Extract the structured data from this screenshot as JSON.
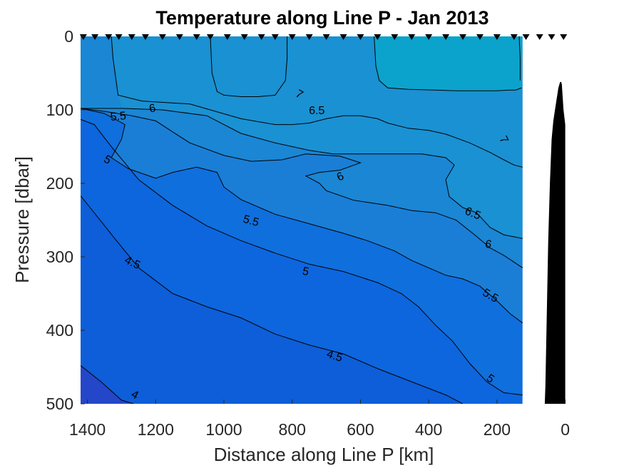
{
  "chart_data": {
    "type": "contour",
    "title": "Temperature along Line P - Jan 2013",
    "xlabel": "Distance along Line P [km]",
    "ylabel": "Pressure [dbar]",
    "xlim": [
      1420,
      -5
    ],
    "ylim": [
      0,
      500
    ],
    "x_reversed": true,
    "y_reversed": true,
    "xticks": [
      1400,
      1200,
      1000,
      800,
      600,
      400,
      200,
      0
    ],
    "yticks": [
      0,
      100,
      200,
      300,
      400,
      500
    ],
    "grid": false,
    "contour_levels": [
      4,
      4.5,
      5,
      5.5,
      6,
      6.5,
      7
    ],
    "fill_colors": {
      "below_4": "#2447c9",
      "4_to_4.5": "#0d5ed8",
      "4.5_to_5": "#0d66dd",
      "5_to_5.5": "#0f6fdd",
      "5.5_to_6": "#1a7ed7",
      "6_to_6.5": "#1a86d4",
      "6.5_to_7": "#1a91d2",
      "above_7": "#0ba3cc"
    },
    "colors": {
      "bathymetry": "#000000",
      "no_data": "#ffffff",
      "stations": "#000000"
    },
    "stations_km": [
      1412,
      1378,
      1338,
      1308,
      1270,
      1230,
      1180,
      1130,
      1080,
      1040,
      990,
      940,
      890,
      850,
      800,
      750,
      700,
      650,
      600,
      550,
      500,
      450,
      400,
      350,
      300,
      250,
      200,
      150,
      115,
      75,
      40,
      5
    ],
    "data_extent_km": [
      1420,
      125
    ],
    "contours": [
      {
        "level": 4,
        "label": "4",
        "points": [
          [
            1420,
            448
          ],
          [
            1360,
            470
          ],
          [
            1300,
            495
          ],
          [
            1265,
            500
          ]
        ]
      },
      {
        "level": 4.5,
        "label": "4.5",
        "points": [
          [
            1420,
            217
          ],
          [
            1380,
            240
          ],
          [
            1320,
            275
          ],
          [
            1250,
            315
          ],
          [
            1150,
            350
          ],
          [
            1050,
            368
          ],
          [
            950,
            383
          ],
          [
            850,
            405
          ],
          [
            750,
            420
          ],
          [
            650,
            432
          ],
          [
            550,
            452
          ],
          [
            450,
            470
          ],
          [
            350,
            488
          ],
          [
            300,
            500
          ]
        ]
      },
      {
        "level": 5,
        "label": "5",
        "points": [
          [
            1420,
            113
          ],
          [
            1380,
            120
          ],
          [
            1330,
            150
          ],
          [
            1250,
            195
          ],
          [
            1150,
            230
          ],
          [
            1050,
            258
          ],
          [
            950,
            278
          ],
          [
            850,
            295
          ],
          [
            750,
            310
          ],
          [
            650,
            320
          ],
          [
            550,
            335
          ],
          [
            480,
            350
          ],
          [
            430,
            368
          ],
          [
            380,
            393
          ],
          [
            330,
            415
          ],
          [
            280,
            445
          ],
          [
            230,
            470
          ],
          [
            180,
            485
          ],
          [
            125,
            488
          ]
        ]
      },
      {
        "level": 5.5,
        "label": "5.5",
        "points": [
          [
            1420,
            98
          ],
          [
            1350,
            105
          ],
          [
            1290,
            120
          ],
          [
            1300,
            140
          ],
          [
            1330,
            165
          ],
          [
            1280,
            180
          ],
          [
            1200,
            193
          ],
          [
            1150,
            185
          ],
          [
            1080,
            178
          ],
          [
            1020,
            185
          ],
          [
            1000,
            205
          ],
          [
            950,
            222
          ],
          [
            850,
            242
          ],
          [
            750,
            255
          ],
          [
            650,
            268
          ],
          [
            580,
            278
          ],
          [
            500,
            292
          ],
          [
            450,
            305
          ],
          [
            400,
            315
          ],
          [
            350,
            325
          ],
          [
            300,
            330
          ],
          [
            250,
            340
          ],
          [
            200,
            360
          ],
          [
            160,
            378
          ],
          [
            125,
            390
          ]
        ]
      },
      {
        "level": 6,
        "label": "6",
        "points": [
          [
            1420,
            98
          ],
          [
            1350,
            102
          ],
          [
            1270,
            108
          ],
          [
            1200,
            115
          ],
          [
            1150,
            130
          ],
          [
            1100,
            145
          ],
          [
            1000,
            162
          ],
          [
            920,
            170
          ],
          [
            830,
            168
          ],
          [
            760,
            160
          ],
          [
            660,
            163
          ],
          [
            600,
            172
          ],
          [
            660,
            182
          ],
          [
            720,
            185
          ],
          [
            760,
            190
          ],
          [
            720,
            200
          ],
          [
            700,
            210
          ],
          [
            620,
            223
          ],
          [
            520,
            230
          ],
          [
            450,
            237
          ],
          [
            380,
            240
          ],
          [
            320,
            250
          ],
          [
            260,
            272
          ],
          [
            220,
            288
          ],
          [
            180,
            298
          ],
          [
            125,
            315
          ]
        ]
      },
      {
        "level": 6.5,
        "label": "6.5",
        "points": [
          [
            1420,
            98
          ],
          [
            1300,
            98
          ],
          [
            1180,
            100
          ],
          [
            1050,
            108
          ],
          [
            950,
            132
          ],
          [
            850,
            145
          ],
          [
            750,
            155
          ],
          [
            680,
            160
          ],
          [
            620,
            160
          ],
          [
            520,
            160
          ],
          [
            420,
            160
          ],
          [
            350,
            165
          ],
          [
            325,
            175
          ],
          [
            350,
            195
          ],
          [
            340,
            218
          ],
          [
            300,
            233
          ],
          [
            260,
            240
          ],
          [
            220,
            260
          ],
          [
            180,
            270
          ],
          [
            125,
            275
          ]
        ]
      },
      {
        "level": 7,
        "label": "7",
        "points": [
          [
            1330,
            0
          ],
          [
            1325,
            30
          ],
          [
            1310,
            80
          ],
          [
            1240,
            88
          ],
          [
            1100,
            92
          ],
          [
            1040,
            100
          ],
          [
            950,
            112
          ],
          [
            850,
            120
          ],
          [
            800,
            120
          ],
          [
            750,
            118
          ],
          [
            700,
            112
          ],
          [
            650,
            108
          ],
          [
            600,
            108
          ],
          [
            550,
            112
          ],
          [
            520,
            118
          ],
          [
            460,
            125
          ],
          [
            400,
            128
          ],
          [
            350,
            133
          ],
          [
            280,
            145
          ],
          [
            220,
            158
          ],
          [
            180,
            168
          ],
          [
            150,
            175
          ],
          [
            125,
            178
          ]
        ]
      },
      {
        "level": 7,
        "label": "7",
        "points": [
          [
            1040,
            0
          ],
          [
            1035,
            50
          ],
          [
            1020,
            75
          ],
          [
            1000,
            80
          ],
          [
            950,
            82
          ],
          [
            900,
            82
          ],
          [
            850,
            80
          ],
          [
            820,
            60
          ],
          [
            815,
            30
          ],
          [
            815,
            0
          ]
        ]
      },
      {
        "level": 7,
        "label": "",
        "points": [
          [
            560,
            0
          ],
          [
            555,
            40
          ],
          [
            545,
            60
          ],
          [
            520,
            70
          ],
          [
            460,
            72
          ],
          [
            380,
            73
          ],
          [
            320,
            74
          ],
          [
            260,
            74
          ],
          [
            200,
            74
          ],
          [
            165,
            73
          ],
          [
            145,
            73
          ],
          [
            128,
            70
          ]
        ]
      },
      {
        "level": 7,
        "label": "",
        "points": [
          [
            135,
            0
          ],
          [
            132,
            30
          ],
          [
            132,
            60
          ]
        ]
      }
    ],
    "contour_labels": [
      {
        "text": "4",
        "x": 1260,
        "y": 487,
        "angle": 28
      },
      {
        "text": "4.5",
        "x": 1267,
        "y": 307,
        "angle": 25
      },
      {
        "text": "4.5",
        "x": 675,
        "y": 434,
        "angle": 18
      },
      {
        "text": "5",
        "x": 1340,
        "y": 167,
        "angle": 30
      },
      {
        "text": "5",
        "x": 760,
        "y": 319,
        "angle": 12
      },
      {
        "text": "5",
        "x": 218,
        "y": 465,
        "angle": 35
      },
      {
        "text": "5.5",
        "x": 1310,
        "y": 108,
        "angle": -5
      },
      {
        "text": "5.5",
        "x": 920,
        "y": 250,
        "angle": 15
      },
      {
        "text": "5.5",
        "x": 218,
        "y": 352,
        "angle": 30
      },
      {
        "text": "6",
        "x": 1210,
        "y": 97,
        "angle": -10
      },
      {
        "text": "6",
        "x": 660,
        "y": 190,
        "angle": -25
      },
      {
        "text": "6",
        "x": 225,
        "y": 282,
        "angle": 12
      },
      {
        "text": "6.5",
        "x": 728,
        "y": 100,
        "angle": 0
      },
      {
        "text": "6.5",
        "x": 270,
        "y": 240,
        "angle": 22
      },
      {
        "text": "7",
        "x": 778,
        "y": 78,
        "angle": 30
      },
      {
        "text": "7",
        "x": 178,
        "y": 140,
        "angle": 62
      }
    ],
    "bathymetry": [
      [
        125,
        500
      ],
      [
        115,
        500
      ],
      [
        60,
        500
      ],
      [
        58,
        475
      ],
      [
        55,
        400
      ],
      [
        50,
        280
      ],
      [
        45,
        200
      ],
      [
        40,
        140
      ],
      [
        35,
        115
      ],
      [
        30,
        100
      ],
      [
        20,
        70
      ],
      [
        15,
        62
      ],
      [
        12,
        62
      ],
      [
        10,
        65
      ],
      [
        5,
        100
      ],
      [
        0,
        120
      ],
      [
        0,
        500
      ]
    ]
  }
}
